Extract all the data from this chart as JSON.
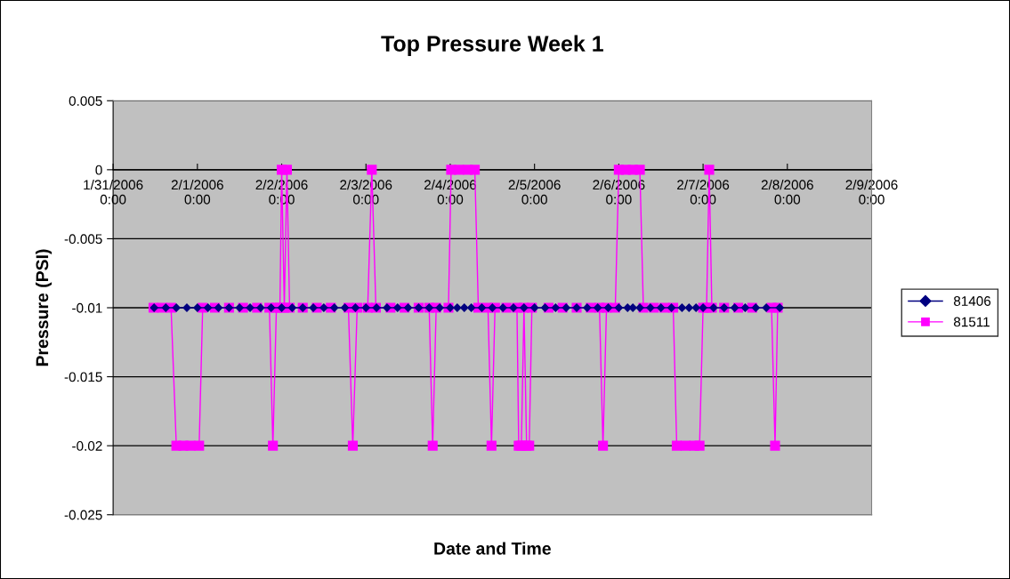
{
  "chart_data": {
    "type": "line",
    "title": "Top Pressure Week 1",
    "xlabel": "Date and Time",
    "ylabel": "Pressure (PSI)",
    "xlim": [
      "2006-01-31",
      "2006-02-09"
    ],
    "xticks": [
      {
        "value": "2006-01-31",
        "label": "1/31/2006\n0:00"
      },
      {
        "value": "2006-02-01",
        "label": "2/1/2006\n0:00"
      },
      {
        "value": "2006-02-02",
        "label": "2/2/2006\n0:00"
      },
      {
        "value": "2006-02-03",
        "label": "2/3/2006\n0:00"
      },
      {
        "value": "2006-02-04",
        "label": "2/4/2006\n0:00"
      },
      {
        "value": "2006-02-05",
        "label": "2/5/2006\n0:00"
      },
      {
        "value": "2006-02-06",
        "label": "2/6/2006\n0:00"
      },
      {
        "value": "2006-02-07",
        "label": "2/7/2006\n0:00"
      },
      {
        "value": "2006-02-08",
        "label": "2/8/2006\n0:00"
      },
      {
        "value": "2006-02-09",
        "label": "2/9/2006\n0:00"
      }
    ],
    "ylim": [
      -0.025,
      0.005
    ],
    "yticks": [
      -0.025,
      -0.02,
      -0.015,
      -0.01,
      -0.005,
      0,
      0.005
    ],
    "grid": "y",
    "legend": "right",
    "series": [
      {
        "name": "81406",
        "color": "#000080",
        "marker": "diamond",
        "x": [
          "2006-01-31T11:40",
          "2006-01-31T15:00",
          "2006-01-31T18:00",
          "2006-01-31T21:00",
          "2006-02-01T00:00",
          "2006-02-01T03:00",
          "2006-02-01T06:00",
          "2006-02-01T09:00",
          "2006-02-01T12:00",
          "2006-02-01T15:00",
          "2006-02-01T18:00",
          "2006-02-01T21:00",
          "2006-02-02T00:00",
          "2006-02-02T03:00",
          "2006-02-02T06:00",
          "2006-02-02T09:00",
          "2006-02-02T12:00",
          "2006-02-02T15:00",
          "2006-02-02T18:00",
          "2006-02-02T21:00",
          "2006-02-03T00:00",
          "2006-02-03T03:00",
          "2006-02-03T06:00",
          "2006-02-03T09:00",
          "2006-02-03T12:00",
          "2006-02-03T15:00",
          "2006-02-03T18:00",
          "2006-02-03T21:00",
          "2006-02-04T00:00",
          "2006-02-04T02:00",
          "2006-02-04T04:00",
          "2006-02-04T06:00",
          "2006-02-04T09:00",
          "2006-02-04T12:00",
          "2006-02-04T15:00",
          "2006-02-04T18:00",
          "2006-02-04T21:00",
          "2006-02-05T00:00",
          "2006-02-05T03:00",
          "2006-02-05T06:00",
          "2006-02-05T09:00",
          "2006-02-05T12:00",
          "2006-02-05T15:00",
          "2006-02-05T18:00",
          "2006-02-05T21:00",
          "2006-02-06T00:00",
          "2006-02-06T02:30",
          "2006-02-06T04:00",
          "2006-02-06T06:00",
          "2006-02-06T09:00",
          "2006-02-06T12:00",
          "2006-02-06T15:00",
          "2006-02-06T18:00",
          "2006-02-06T20:00",
          "2006-02-06T22:00",
          "2006-02-07T00:00",
          "2006-02-07T03:00",
          "2006-02-07T06:00",
          "2006-02-07T09:00",
          "2006-02-07T12:00",
          "2006-02-07T15:00",
          "2006-02-07T18:00",
          "2006-02-07T21:50"
        ],
        "values": [
          -0.01,
          -0.01,
          -0.01,
          -0.01,
          -0.01,
          -0.01,
          -0.01,
          -0.01,
          -0.01,
          -0.01,
          -0.01,
          -0.01,
          -0.01,
          -0.01,
          -0.01,
          -0.01,
          -0.01,
          -0.01,
          -0.01,
          -0.01,
          -0.01,
          -0.01,
          -0.01,
          -0.01,
          -0.01,
          -0.01,
          -0.01,
          -0.01,
          -0.01,
          -0.01,
          -0.01,
          -0.01,
          -0.01,
          -0.01,
          -0.01,
          -0.01,
          -0.01,
          -0.01,
          -0.01,
          -0.01,
          -0.01,
          -0.01,
          -0.01,
          -0.01,
          -0.01,
          -0.01,
          -0.01,
          -0.01,
          -0.01,
          -0.01,
          -0.01,
          -0.01,
          -0.01,
          -0.01,
          -0.01,
          -0.01,
          -0.01,
          -0.01,
          -0.01,
          -0.01,
          -0.01,
          -0.01,
          -0.01
        ]
      },
      {
        "name": "81511",
        "color": "#ff00ff",
        "marker": "square",
        "x": [
          "2006-01-31T11:30",
          "2006-01-31T14:00",
          "2006-01-31T16:30",
          "2006-01-31T18:00",
          "2006-01-31T20:00",
          "2006-01-31T22:00",
          "2006-02-01T00:30",
          "2006-02-01T01:30",
          "2006-02-01T05:00",
          "2006-02-01T09:00",
          "2006-02-01T13:00",
          "2006-02-01T17:00",
          "2006-02-01T20:30",
          "2006-02-01T21:30",
          "2006-02-01T22:30",
          "2006-02-01T23:30",
          "2006-02-02T00:00",
          "2006-02-02T00:45",
          "2006-02-02T01:30",
          "2006-02-02T02:15",
          "2006-02-02T06:00",
          "2006-02-02T10:00",
          "2006-02-02T14:00",
          "2006-02-02T19:00",
          "2006-02-02T20:15",
          "2006-02-02T21:30",
          "2006-02-03T00:30",
          "2006-02-03T01:40",
          "2006-02-03T02:50",
          "2006-02-03T07:00",
          "2006-02-03T11:00",
          "2006-02-03T15:00",
          "2006-02-03T18:00",
          "2006-02-03T19:00",
          "2006-02-03T20:00",
          "2006-02-03T23:30",
          "2006-02-04T00:15",
          "2006-02-04T02:30",
          "2006-02-04T05:00",
          "2006-02-04T07:00",
          "2006-02-04T08:00",
          "2006-02-04T10:45",
          "2006-02-04T11:45",
          "2006-02-04T12:45",
          "2006-02-04T16:00",
          "2006-02-04T19:00",
          "2006-02-04T19:30",
          "2006-02-04T20:15",
          "2006-02-04T21:00",
          "2006-02-04T21:45",
          "2006-02-04T22:30",
          "2006-02-04T23:15",
          "2006-02-05T04:00",
          "2006-02-05T08:00",
          "2006-02-05T12:00",
          "2006-02-05T16:00",
          "2006-02-05T18:30",
          "2006-02-05T19:30",
          "2006-02-05T20:30",
          "2006-02-05T23:00",
          "2006-02-06T00:00",
          "2006-02-06T02:00",
          "2006-02-06T04:00",
          "2006-02-06T06:00",
          "2006-02-06T07:00",
          "2006-02-06T10:00",
          "2006-02-06T13:00",
          "2006-02-06T15:30",
          "2006-02-06T16:30",
          "2006-02-06T19:00",
          "2006-02-06T21:30",
          "2006-02-06T23:00",
          "2006-02-07T00:00",
          "2006-02-07T01:00",
          "2006-02-07T01:45",
          "2006-02-07T02:30",
          "2006-02-07T06:00",
          "2006-02-07T10:00",
          "2006-02-07T14:00",
          "2006-02-07T19:30",
          "2006-02-07T20:30",
          "2006-02-07T21:15"
        ],
        "values": [
          -0.01,
          -0.01,
          -0.01,
          -0.02,
          -0.02,
          -0.02,
          -0.02,
          -0.01,
          -0.01,
          -0.01,
          -0.01,
          -0.01,
          -0.01,
          -0.02,
          -0.01,
          -0.01,
          0,
          -0.01,
          0,
          -0.01,
          -0.01,
          -0.01,
          -0.01,
          -0.01,
          -0.02,
          -0.01,
          -0.01,
          0,
          -0.01,
          -0.01,
          -0.01,
          -0.01,
          -0.01,
          -0.02,
          -0.01,
          -0.01,
          0,
          0,
          0,
          0,
          -0.01,
          -0.01,
          -0.02,
          -0.01,
          -0.01,
          -0.01,
          -0.02,
          -0.02,
          -0.01,
          -0.02,
          -0.02,
          -0.01,
          -0.01,
          -0.01,
          -0.01,
          -0.01,
          -0.01,
          -0.02,
          -0.01,
          -0.01,
          0,
          0,
          0,
          0,
          -0.01,
          -0.01,
          -0.01,
          -0.01,
          -0.02,
          -0.02,
          -0.02,
          -0.02,
          -0.01,
          -0.01,
          0,
          -0.01,
          -0.01,
          -0.01,
          -0.01,
          -0.01,
          -0.02,
          -0.01
        ]
      }
    ]
  }
}
